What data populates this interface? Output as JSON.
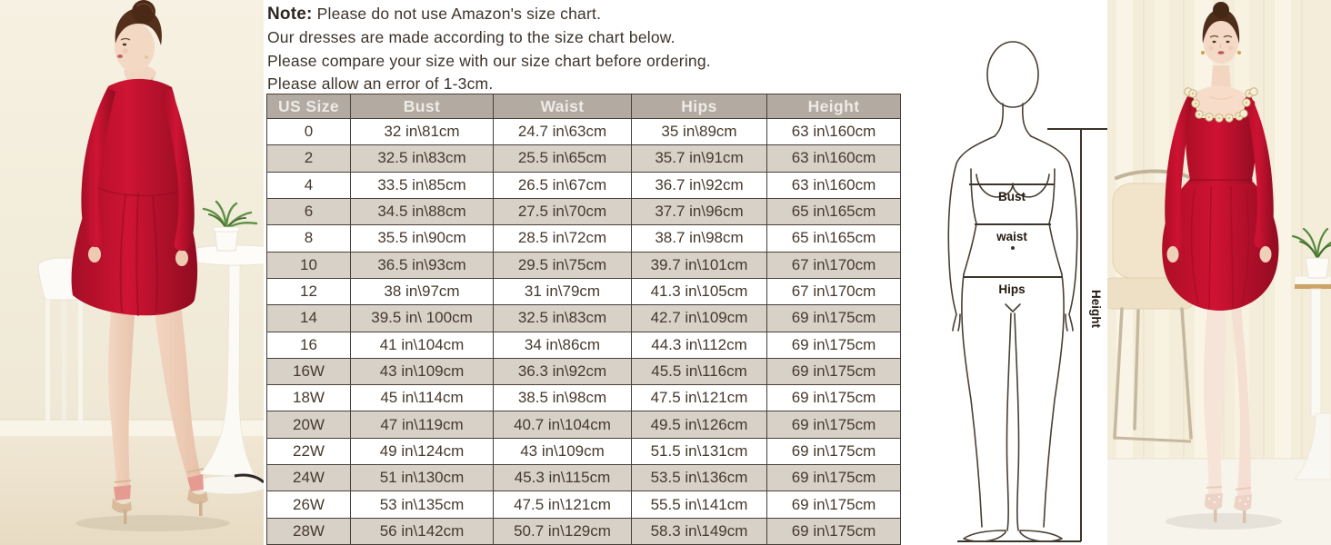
{
  "note": {
    "title": "Note:",
    "lines": [
      "Please do not use Amazon's size chart.",
      "Our dresses are made according to the size chart below.",
      "Please compare your size with our size chart before ordering.",
      "Please allow an error of 1-3cm."
    ]
  },
  "size_table": {
    "headers": [
      "US Size",
      "Bust",
      "Waist",
      "Hips",
      "Height"
    ],
    "rows": [
      [
        "0",
        "32 in\\81cm",
        "24.7 in\\63cm",
        "35 in\\89cm",
        "63 in\\160cm"
      ],
      [
        "2",
        "32.5 in\\83cm",
        "25.5 in\\65cm",
        "35.7 in\\91cm",
        "63 in\\160cm"
      ],
      [
        "4",
        "33.5 in\\85cm",
        "26.5 in\\67cm",
        "36.7 in\\92cm",
        "63 in\\160cm"
      ],
      [
        "6",
        "34.5 in\\88cm",
        "27.5 in\\70cm",
        "37.7 in\\96cm",
        "65 in\\165cm"
      ],
      [
        "8",
        "35.5 in\\90cm",
        "28.5 in\\72cm",
        "38.7 in\\98cm",
        "65 in\\165cm"
      ],
      [
        "10",
        "36.5 in\\93cm",
        "29.5 in\\75cm",
        "39.7 in\\101cm",
        "67 in\\170cm"
      ],
      [
        "12",
        "38 in\\97cm",
        "31 in\\79cm",
        "41.3 in\\105cm",
        "67 in\\170cm"
      ],
      [
        "14",
        "39.5 in\\ 100cm",
        "32.5 in\\83cm",
        "42.7 in\\109cm",
        "69 in\\175cm"
      ],
      [
        "16",
        "41 in\\104cm",
        "34 in\\86cm",
        "44.3 in\\112cm",
        "69 in\\175cm"
      ],
      [
        "16W",
        "43 in\\109cm",
        "36.3 in\\92cm",
        "45.5 in\\116cm",
        "69 in\\175cm"
      ],
      [
        "18W",
        "45 in\\114cm",
        "38.5 in\\98cm",
        "47.5 in\\121cm",
        "69 in\\175cm"
      ],
      [
        "20W",
        "47 in\\119cm",
        "40.7 in\\104cm",
        "49.5 in\\126cm",
        "69 in\\175cm"
      ],
      [
        "22W",
        "49 in\\124cm",
        "43 in\\109cm",
        "51.5 in\\131cm",
        "69 in\\175cm"
      ],
      [
        "24W",
        "51 in\\130cm",
        "45.3 in\\115cm",
        "53.5 in\\136cm",
        "69 in\\175cm"
      ],
      [
        "26W",
        "53 in\\135cm",
        "47.5 in\\121cm",
        "55.5 in\\141cm",
        "69 in\\175cm"
      ],
      [
        "28W",
        "56 in\\142cm",
        "50.7 in\\129cm",
        "58.3 in\\149cm",
        "69 in\\175cm"
      ]
    ]
  },
  "diagram": {
    "bust": "Bust",
    "waist": "waist",
    "hips": "Hips",
    "height": "Height"
  },
  "colors": {
    "dress_red": "#c11330",
    "table_header_bg": "#b3aaa1",
    "table_alt_row_bg": "#d8d1c8",
    "table_border": "#474039",
    "text": "#3c332a",
    "wall_cream": "#f4eedd"
  },
  "chart_data": {
    "type": "table",
    "title": "US dress size chart (in\\cm)",
    "columns": [
      "US Size",
      "Bust",
      "Waist",
      "Hips",
      "Height"
    ],
    "rows": [
      [
        "0",
        "32 in\\81cm",
        "24.7 in\\63cm",
        "35 in\\89cm",
        "63 in\\160cm"
      ],
      [
        "2",
        "32.5 in\\83cm",
        "25.5 in\\65cm",
        "35.7 in\\91cm",
        "63 in\\160cm"
      ],
      [
        "4",
        "33.5 in\\85cm",
        "26.5 in\\67cm",
        "36.7 in\\92cm",
        "63 in\\160cm"
      ],
      [
        "6",
        "34.5 in\\88cm",
        "27.5 in\\70cm",
        "37.7 in\\96cm",
        "65 in\\165cm"
      ],
      [
        "8",
        "35.5 in\\90cm",
        "28.5 in\\72cm",
        "38.7 in\\98cm",
        "65 in\\165cm"
      ],
      [
        "10",
        "36.5 in\\93cm",
        "29.5 in\\75cm",
        "39.7 in\\101cm",
        "67 in\\170cm"
      ],
      [
        "12",
        "38 in\\97cm",
        "31 in\\79cm",
        "41.3 in\\105cm",
        "67 in\\170cm"
      ],
      [
        "14",
        "39.5 in\\ 100cm",
        "32.5 in\\83cm",
        "42.7 in\\109cm",
        "69 in\\175cm"
      ],
      [
        "16",
        "41 in\\104cm",
        "34 in\\86cm",
        "44.3 in\\112cm",
        "69 in\\175cm"
      ],
      [
        "16W",
        "43 in\\109cm",
        "36.3 in\\92cm",
        "45.5 in\\116cm",
        "69 in\\175cm"
      ],
      [
        "18W",
        "45 in\\114cm",
        "38.5 in\\98cm",
        "47.5 in\\121cm",
        "69 in\\175cm"
      ],
      [
        "20W",
        "47 in\\119cm",
        "40.7 in\\104cm",
        "49.5 in\\126cm",
        "69 in\\175cm"
      ],
      [
        "22W",
        "49 in\\124cm",
        "43 in\\109cm",
        "51.5 in\\131cm",
        "69 in\\175cm"
      ],
      [
        "24W",
        "51 in\\130cm",
        "45.3 in\\115cm",
        "53.5 in\\136cm",
        "69 in\\175cm"
      ],
      [
        "26W",
        "53 in\\135cm",
        "47.5 in\\121cm",
        "55.5 in\\141cm",
        "69 in\\175cm"
      ],
      [
        "28W",
        "56 in\\142cm",
        "50.7 in\\129cm",
        "58.3 in\\149cm",
        "69 in\\175cm"
      ]
    ]
  }
}
